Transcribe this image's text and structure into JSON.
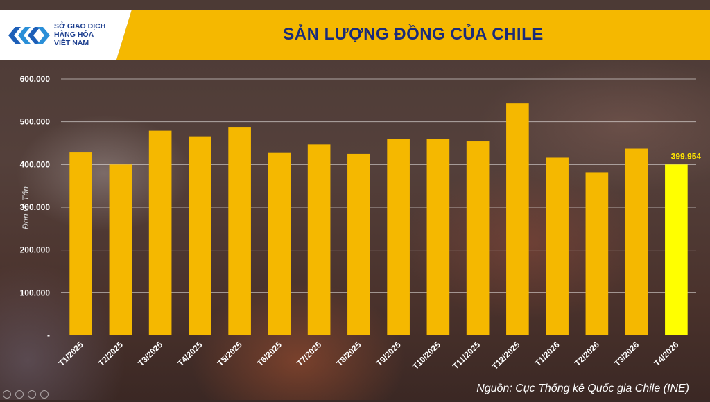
{
  "header": {
    "logo_lines": [
      "SỞ GIAO DỊCH",
      "HÀNG HÓA",
      "VIỆT NAM"
    ],
    "title": "SẢN LƯỢNG ĐỒNG CỦA CHILE"
  },
  "source_note": "Nguồn: Cục Thống kê Quốc gia Chile (INE)",
  "colors": {
    "bar": "#f5b800",
    "highlight_bar": "#ffff00",
    "highlight_label": "#ffe600",
    "banner": "#f5b800",
    "title": "#1a2b7a"
  },
  "chart_data": {
    "type": "bar",
    "title": "SẢN LƯỢNG ĐỒNG CỦA CHILE",
    "ylabel": "Đơn vị: Tấn",
    "xlabel": "",
    "ylim": [
      0,
      600000
    ],
    "yticks": [
      0,
      100000,
      200000,
      300000,
      400000,
      500000,
      600000
    ],
    "ytick_labels": [
      "-",
      "100.000",
      "200.000",
      "300.000",
      "400.000",
      "500.000",
      "600.000"
    ],
    "grid": true,
    "categories": [
      "T1/2025",
      "T2/2025",
      "T3/2025",
      "T4/2025",
      "T5/2025",
      "T6/2025",
      "T7/2025",
      "T8/2025",
      "T9/2025",
      "T10/2025",
      "T11/2025",
      "T12/2025",
      "T1/2026",
      "T2/2026",
      "T3/2026",
      "T4/2026"
    ],
    "values": [
      428000,
      400000,
      479000,
      466000,
      488000,
      427000,
      447000,
      425000,
      459000,
      460000,
      454000,
      543000,
      416000,
      382000,
      437000,
      399954
    ],
    "highlight_index": 15,
    "data_labels": [
      {
        "index": 15,
        "text": "399.954"
      }
    ]
  }
}
